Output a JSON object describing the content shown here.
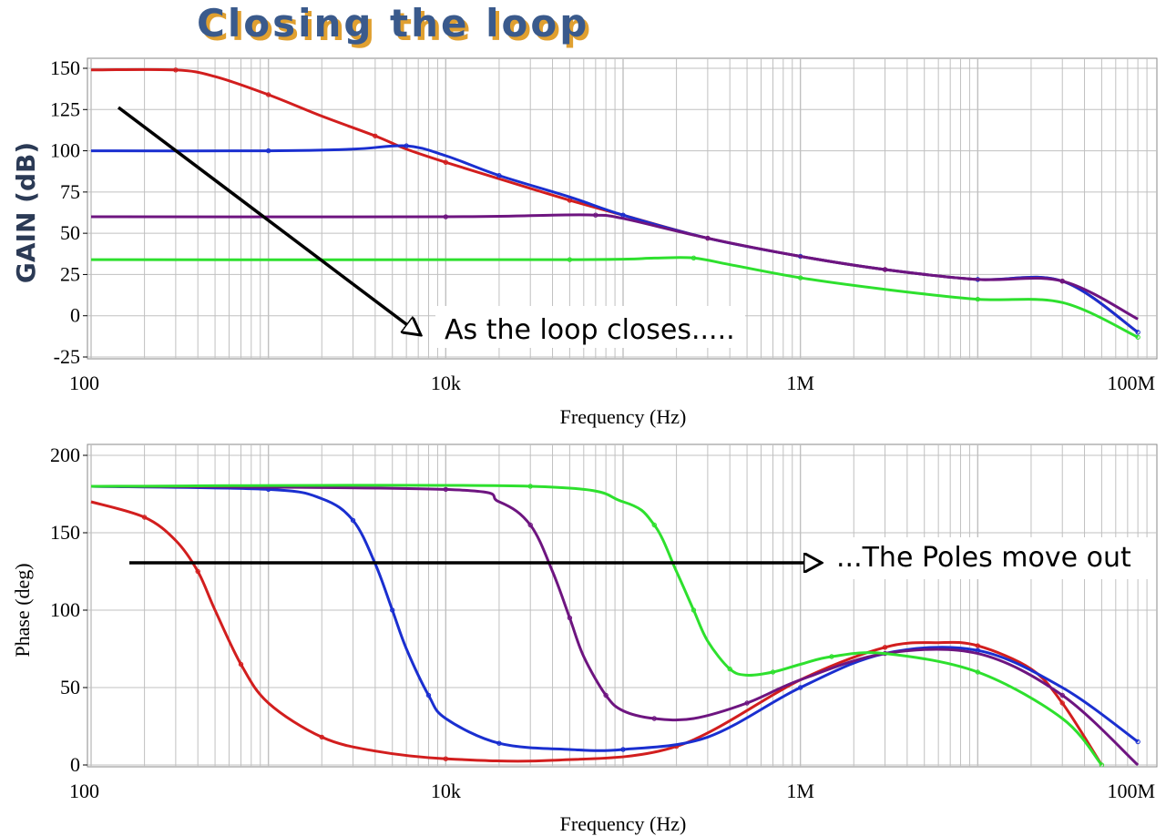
{
  "title": "Closing the loop",
  "annotations": {
    "gain": "As the loop closes.....",
    "phase": "...The Poles move out"
  },
  "colors": {
    "red": "#d21e1e",
    "blue": "#1a2fd0",
    "purple": "#6e1580",
    "green": "#2ee02e",
    "grid": "#c0c0c0",
    "title_fill": "#3a5a8c",
    "title_shadow": "#e0a030"
  },
  "chart_data": [
    {
      "type": "line",
      "xlabel": "Frequency (Hz)",
      "ylabel": "GAIN (dB)",
      "xscale": "log",
      "xlim": [
        100,
        100000000
      ],
      "ylim": [
        -25,
        150
      ],
      "xticks": [
        100,
        10000,
        1000000,
        100000000
      ],
      "xtick_labels": [
        "100",
        "10k",
        "1M",
        "100M"
      ],
      "yticks": [
        150,
        125,
        100,
        75,
        50,
        25,
        0,
        -25
      ],
      "ytick_labels": [
        "150",
        "125",
        "100",
        "75",
        "50",
        "25",
        "0",
        "-25"
      ],
      "grid": true,
      "series": [
        {
          "color": "red",
          "x": [
            100,
            300,
            500,
            1000,
            2000,
            4000,
            6000,
            10000,
            20000,
            50000,
            100000,
            300000,
            1000000,
            3000000,
            10000000,
            30000000,
            80000000
          ],
          "y": [
            149,
            149,
            145,
            134,
            121,
            109,
            101,
            93,
            83,
            70,
            61,
            47,
            36,
            28,
            22,
            21,
            -10
          ]
        },
        {
          "color": "blue",
          "x": [
            100,
            1000,
            3000,
            6000,
            10000,
            20000,
            50000,
            100000,
            300000,
            1000000,
            3000000,
            10000000,
            30000000,
            80000000
          ],
          "y": [
            100,
            100,
            101,
            103,
            97,
            85,
            72,
            61,
            47,
            36,
            28,
            22,
            21,
            -10
          ]
        },
        {
          "color": "purple",
          "x": [
            100,
            10000,
            40000,
            70000,
            100000,
            300000,
            1000000,
            3000000,
            10000000,
            30000000,
            80000000
          ],
          "y": [
            60,
            60,
            61,
            61,
            59,
            47,
            36,
            28,
            22,
            21,
            -2
          ]
        },
        {
          "color": "green",
          "x": [
            100,
            50000,
            150000,
            250000,
            400000,
            1000000,
            3000000,
            10000000,
            30000000,
            80000000
          ],
          "y": [
            34,
            34,
            35,
            35,
            31,
            23,
            16,
            10,
            8,
            -13
          ]
        }
      ]
    },
    {
      "type": "line",
      "xlabel": "Frequency (Hz)",
      "ylabel": "Phase (deg)",
      "xscale": "log",
      "xlim": [
        100,
        100000000
      ],
      "ylim": [
        0,
        200
      ],
      "xticks": [
        100,
        10000,
        1000000,
        100000000
      ],
      "xtick_labels": [
        "100",
        "10k",
        "1M",
        "100M"
      ],
      "yticks": [
        200,
        150,
        100,
        50,
        0
      ],
      "ytick_labels": [
        "200",
        "150",
        "100",
        "50",
        "0"
      ],
      "grid": true,
      "series": [
        {
          "color": "red",
          "x": [
            100,
            200,
            300,
            400,
            500,
            700,
            1000,
            2000,
            4000,
            10000,
            40000,
            200000,
            1000000,
            3000000,
            6000000,
            10000000,
            20000000,
            30000000,
            50000000
          ],
          "y": [
            170,
            160,
            145,
            125,
            100,
            65,
            40,
            18,
            9,
            4,
            3,
            12,
            55,
            76,
            79,
            77,
            62,
            40,
            0
          ]
        },
        {
          "color": "blue",
          "x": [
            100,
            1000,
            2000,
            3000,
            4000,
            5000,
            6000,
            8000,
            10000,
            20000,
            50000,
            100000,
            300000,
            1000000,
            3000000,
            10000000,
            30000000,
            80000000
          ],
          "y": [
            180,
            178,
            172,
            158,
            130,
            100,
            75,
            45,
            30,
            14,
            10,
            10,
            18,
            50,
            72,
            74,
            50,
            15
          ]
        },
        {
          "color": "purple",
          "x": [
            100,
            10000,
            20000,
            30000,
            40000,
            50000,
            60000,
            80000,
            100000,
            150000,
            250000,
            500000,
            1000000,
            3000000,
            10000000,
            30000000,
            80000000
          ],
          "y": [
            180,
            178,
            170,
            155,
            125,
            95,
            70,
            45,
            35,
            30,
            30,
            40,
            55,
            72,
            72,
            45,
            0
          ]
        },
        {
          "color": "green",
          "x": [
            100,
            30000,
            100000,
            150000,
            200000,
            250000,
            300000,
            400000,
            500000,
            700000,
            1000000,
            1500000,
            3000000,
            10000000,
            30000000,
            50000000
          ],
          "y": [
            180,
            180,
            170,
            155,
            125,
            100,
            80,
            62,
            58,
            60,
            65,
            70,
            72,
            60,
            30,
            0
          ]
        }
      ]
    }
  ]
}
